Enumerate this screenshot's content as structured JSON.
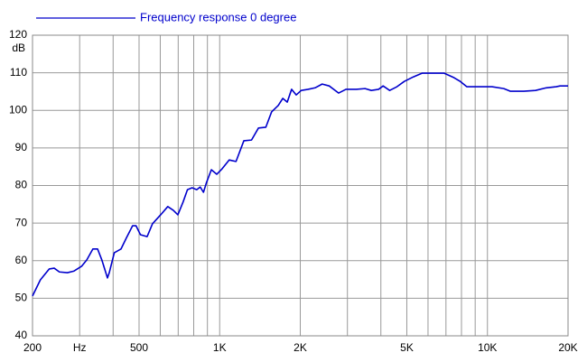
{
  "chart_data": {
    "type": "line",
    "ylabel": "dB",
    "log_x": true,
    "grid": true,
    "xlim": [
      200,
      20000
    ],
    "ylim": [
      40,
      120
    ],
    "xticks": [
      200,
      {
        "value": 300,
        "label": "Hz"
      },
      500,
      {
        "value": 1000,
        "label": "1K"
      },
      {
        "value": 2000,
        "label": "2K"
      },
      {
        "value": 5000,
        "label": "5K"
      },
      {
        "value": 10000,
        "label": "10K"
      },
      {
        "value": 20000,
        "label": "20K"
      }
    ],
    "xminor": [
      400,
      600,
      700,
      800,
      900,
      3000,
      4000,
      6000,
      7000,
      8000,
      9000
    ],
    "yticks": [
      40,
      50,
      60,
      70,
      80,
      90,
      100,
      110,
      120
    ],
    "x": [
      200,
      214,
      231,
      241,
      252,
      270,
      285,
      305,
      319,
      336,
      350,
      363,
      381,
      387,
      404,
      428,
      448,
      473,
      487,
      506,
      536,
      561,
      602,
      640,
      671,
      698,
      730,
      758,
      789,
      821,
      846,
      870,
      893,
      931,
      975,
      1020,
      1085,
      1151,
      1231,
      1315,
      1396,
      1487,
      1563,
      1655,
      1721,
      1788,
      1856,
      1931,
      2016,
      2140,
      2272,
      2414,
      2565,
      2782,
      2962,
      3240,
      3492,
      3684,
      3923,
      4078,
      4314,
      4595,
      4891,
      5286,
      5710,
      6270,
      6880,
      7500,
      7920,
      8370,
      9120,
      10400,
      11510,
      12160,
      13670,
      15120,
      16590,
      18070,
      18660,
      20000
    ],
    "series": [
      {
        "name": "Frequency response 0 degree",
        "color": "#0000cc",
        "values": [
          50.6,
          54.9,
          57.8,
          58,
          57,
          56.8,
          57.2,
          58.5,
          60.2,
          63.1,
          63.1,
          60.2,
          55.4,
          56.8,
          62.1,
          63.1,
          66,
          69.3,
          69.3,
          66.9,
          66.4,
          69.8,
          72.2,
          74.4,
          73.4,
          72.2,
          75.6,
          78.9,
          79.4,
          78.9,
          79.6,
          78.2,
          80.8,
          84.2,
          83,
          84.4,
          86.8,
          86.4,
          91.9,
          92.1,
          95.3,
          95.5,
          99.6,
          101.3,
          103.2,
          102.2,
          105.6,
          104.1,
          105.3,
          105.6,
          106,
          107,
          106.5,
          104.6,
          105.6,
          105.6,
          105.8,
          105.3,
          105.6,
          106.5,
          105.3,
          106.3,
          107.7,
          108.9,
          109.9,
          109.9,
          109.9,
          108.7,
          107.7,
          106.3,
          106.3,
          106.3,
          105.8,
          105.1,
          105.1,
          105.3,
          106,
          106.3,
          106.5,
          106.5
        ]
      }
    ]
  }
}
